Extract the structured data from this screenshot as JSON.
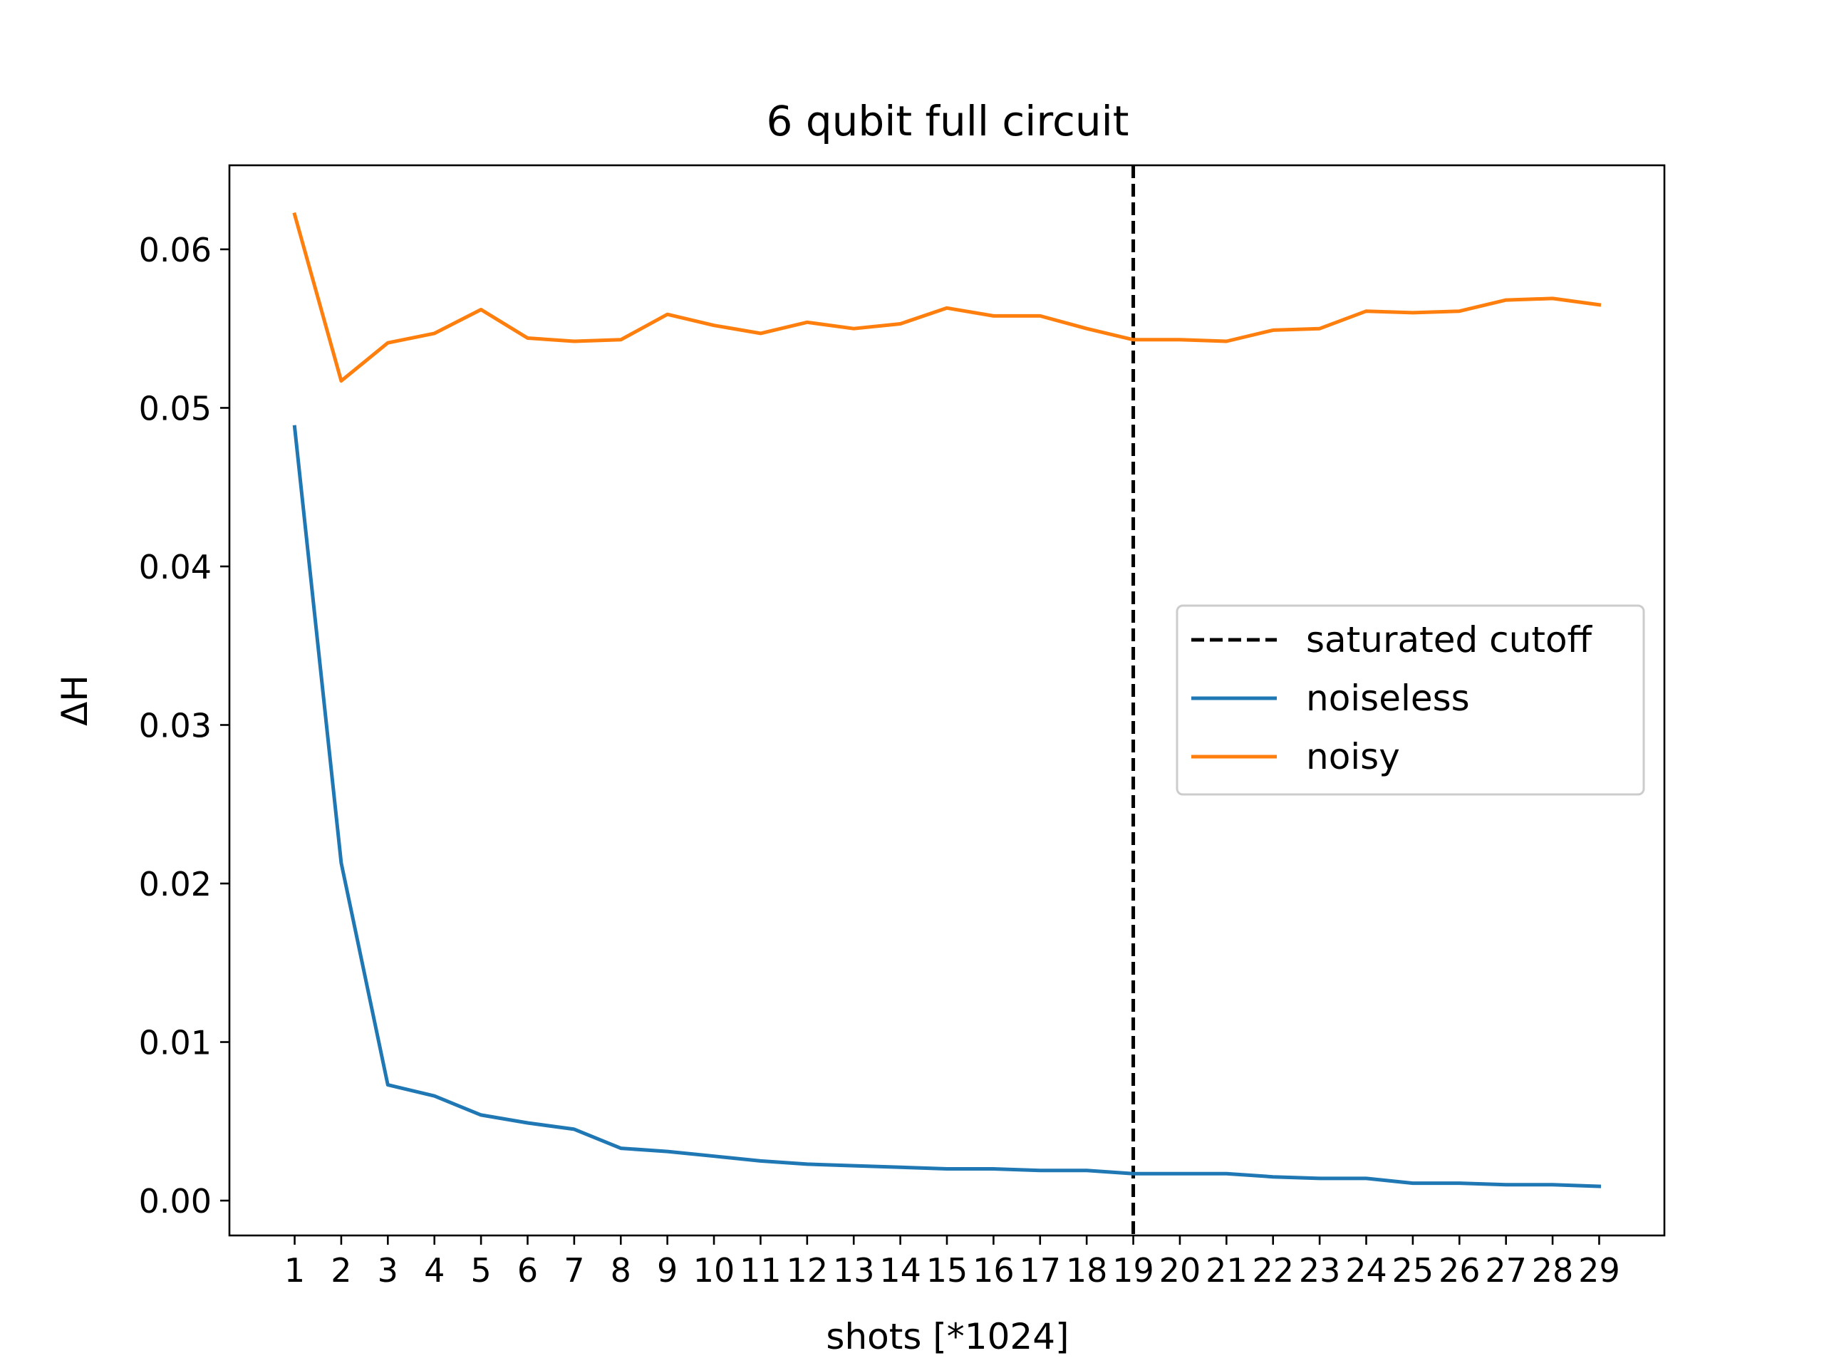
{
  "chart_data": {
    "type": "line",
    "title": "6 qubit full circuit",
    "xlabel": "shots [*1024]",
    "ylabel": "ΔH",
    "x": [
      1,
      2,
      3,
      4,
      5,
      6,
      7,
      8,
      9,
      10,
      11,
      12,
      13,
      14,
      15,
      16,
      17,
      18,
      19,
      20,
      21,
      22,
      23,
      24,
      25,
      26,
      27,
      28,
      29
    ],
    "x_tick_labels": [
      "1",
      "2",
      "3",
      "4",
      "5",
      "6",
      "7",
      "8",
      "9",
      "10",
      "11",
      "12",
      "13",
      "14",
      "15",
      "16",
      "17",
      "18",
      "19",
      "20",
      "21",
      "22",
      "23",
      "24",
      "25",
      "26",
      "27",
      "28",
      "29"
    ],
    "xlim": [
      -0.4,
      30.4
    ],
    "ylim": [
      -0.0022,
      0.0653
    ],
    "y_ticks": [
      0.0,
      0.01,
      0.02,
      0.03,
      0.04,
      0.05,
      0.06
    ],
    "y_tick_labels": [
      "0.00",
      "0.01",
      "0.02",
      "0.03",
      "0.04",
      "0.05",
      "0.06"
    ],
    "grid": false,
    "legend_position": "center-right",
    "cutoff": {
      "name": "saturated cutoff",
      "x": 19,
      "color": "#000000",
      "style": "dashed"
    },
    "series": [
      {
        "name": "noiseless",
        "color": "#1f77b4",
        "values": [
          0.0488,
          0.0213,
          0.0073,
          0.0066,
          0.0054,
          0.0049,
          0.0045,
          0.0033,
          0.0031,
          0.0028,
          0.0025,
          0.0023,
          0.0022,
          0.0021,
          0.002,
          0.002,
          0.0019,
          0.0019,
          0.0017,
          0.0017,
          0.0017,
          0.0015,
          0.0014,
          0.0014,
          0.0011,
          0.0011,
          0.001,
          0.001,
          0.0009
        ]
      },
      {
        "name": "noisy",
        "color": "#ff7f0e",
        "values": [
          0.0622,
          0.0517,
          0.0541,
          0.0547,
          0.0562,
          0.0544,
          0.0542,
          0.0543,
          0.0559,
          0.0552,
          0.0547,
          0.0554,
          0.055,
          0.0553,
          0.0563,
          0.0558,
          0.0558,
          0.055,
          0.0543,
          0.0543,
          0.0542,
          0.0549,
          0.055,
          0.0561,
          0.056,
          0.0561,
          0.0568,
          0.0569,
          0.0565
        ]
      }
    ]
  }
}
